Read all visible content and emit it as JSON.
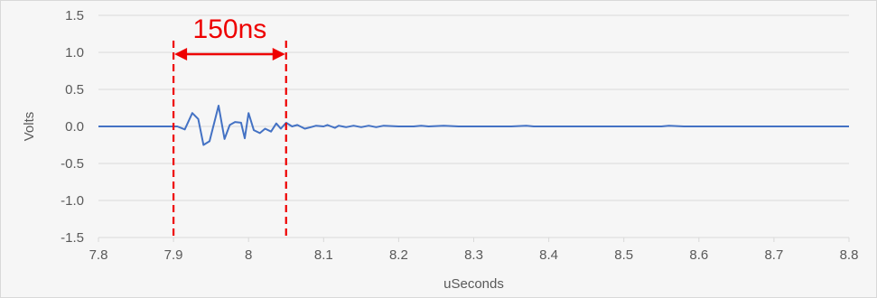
{
  "chart_data": {
    "type": "line",
    "title": "",
    "xlabel": "uSeconds",
    "ylabel": "Volts",
    "xlim": [
      7.8,
      8.8
    ],
    "ylim": [
      -1.5,
      1.5
    ],
    "x_ticks": [
      7.8,
      7.9,
      8.0,
      8.1,
      8.2,
      8.3,
      8.4,
      8.5,
      8.6,
      8.7,
      8.8
    ],
    "x_tick_labels": [
      "7.8",
      "7.9",
      "8",
      "8.1",
      "8.2",
      "8.3",
      "8.4",
      "8.5",
      "8.6",
      "8.7",
      "8.8"
    ],
    "y_ticks": [
      1.5,
      1.0,
      0.5,
      0.0,
      -0.5,
      -1.0,
      -1.5
    ],
    "y_tick_labels": [
      "1.5",
      "1.0",
      "0.5",
      "0.0",
      "-0.5",
      "-1.0",
      "-1.5"
    ],
    "grid": {
      "horizontal": true,
      "vertical": false
    },
    "legend": "none",
    "series": [
      {
        "color": "#4472c4",
        "x": [
          7.8,
          7.85,
          7.9,
          7.905,
          7.915,
          7.925,
          7.933,
          7.94,
          7.948,
          7.96,
          7.968,
          7.975,
          7.982,
          7.99,
          7.995,
          8.0,
          8.007,
          8.015,
          8.022,
          8.03,
          8.037,
          8.043,
          8.05,
          8.058,
          8.065,
          8.075,
          8.083,
          8.09,
          8.1,
          8.105,
          8.11,
          8.115,
          8.12,
          8.13,
          8.14,
          8.15,
          8.16,
          8.17,
          8.18,
          8.2,
          8.22,
          8.23,
          8.24,
          8.26,
          8.28,
          8.3,
          8.35,
          8.37,
          8.38,
          8.4,
          8.45,
          8.5,
          8.55,
          8.56,
          8.58,
          8.6,
          8.7,
          8.8
        ],
        "y": [
          0.0,
          0.0,
          0.0,
          0.0,
          -0.04,
          0.18,
          0.1,
          -0.25,
          -0.2,
          0.28,
          -0.17,
          0.02,
          0.06,
          0.05,
          -0.16,
          0.18,
          -0.05,
          -0.09,
          -0.03,
          -0.07,
          0.04,
          -0.03,
          0.05,
          0.0,
          0.02,
          -0.03,
          -0.01,
          0.01,
          0.0,
          0.02,
          0.0,
          -0.02,
          0.01,
          -0.01,
          0.01,
          -0.01,
          0.01,
          -0.01,
          0.01,
          0.0,
          0.0,
          0.01,
          0.0,
          0.01,
          0.0,
          0.0,
          0.0,
          0.01,
          0.0,
          0.0,
          0.0,
          0.0,
          0.0,
          0.01,
          0.0,
          0.0,
          0.0,
          0.0
        ]
      }
    ],
    "annotations": [
      {
        "type": "interval",
        "text": "150ns",
        "x_start": 7.9,
        "x_end": 8.05,
        "color": "#ee0000"
      }
    ]
  }
}
